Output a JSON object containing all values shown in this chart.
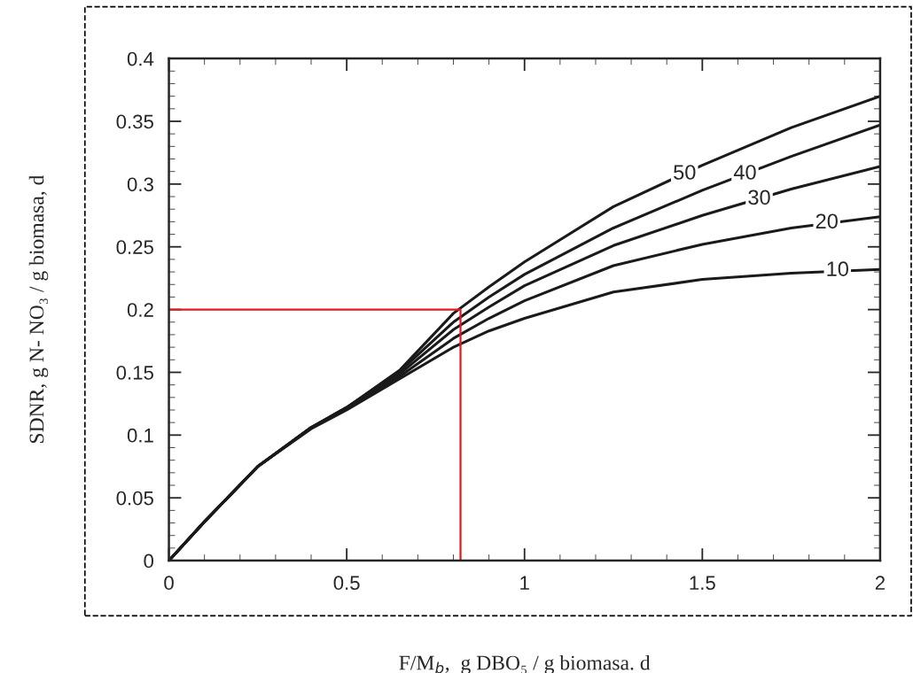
{
  "chart_data": {
    "type": "line",
    "xlabel": "F/M$_{b}$,  g DBO₅ / g biomasa. d",
    "ylabel": "SDNR, g N- NO₃ / g biomasa, d",
    "xlim": [
      0,
      2
    ],
    "ylim": [
      0,
      0.4
    ],
    "xticks": [
      0,
      0.5,
      1,
      1.5,
      2
    ],
    "yticks": [
      0,
      0.05,
      0.1,
      0.15,
      0.2,
      0.25,
      0.3,
      0.35,
      0.4
    ],
    "grid": false,
    "series": [
      {
        "color": "#1a1a1a",
        "x": [
          0,
          0.1,
          0.25,
          0.4,
          0.5,
          0.65,
          0.8,
          0.9,
          1.0,
          1.25,
          1.5,
          1.75,
          2.0
        ],
        "values": [
          0,
          0.031,
          0.075,
          0.106,
          0.122,
          0.152,
          0.197,
          0.218,
          0.238,
          0.282,
          0.315,
          0.345,
          0.37
        ]
      },
      {
        "color": "#1a1a1a",
        "x": [
          0,
          0.1,
          0.25,
          0.4,
          0.5,
          0.65,
          0.8,
          0.9,
          1.0,
          1.25,
          1.5,
          1.75,
          2.0
        ],
        "values": [
          0,
          0.031,
          0.075,
          0.106,
          0.122,
          0.151,
          0.19,
          0.21,
          0.228,
          0.265,
          0.295,
          0.322,
          0.347
        ]
      },
      {
        "color": "#1a1a1a",
        "x": [
          0,
          0.1,
          0.25,
          0.4,
          0.5,
          0.65,
          0.8,
          0.9,
          1.0,
          1.25,
          1.5,
          1.75,
          2.0
        ],
        "values": [
          0,
          0.031,
          0.075,
          0.106,
          0.122,
          0.149,
          0.184,
          0.202,
          0.219,
          0.251,
          0.275,
          0.296,
          0.314
        ]
      },
      {
        "color": "#1a1a1a",
        "x": [
          0,
          0.1,
          0.25,
          0.4,
          0.5,
          0.65,
          0.8,
          0.9,
          1.0,
          1.25,
          1.5,
          1.75,
          2.0
        ],
        "values": [
          0,
          0.031,
          0.075,
          0.106,
          0.121,
          0.147,
          0.177,
          0.193,
          0.207,
          0.235,
          0.252,
          0.265,
          0.274
        ]
      },
      {
        "color": "#1a1a1a",
        "x": [
          0,
          0.1,
          0.25,
          0.4,
          0.5,
          0.65,
          0.8,
          0.9,
          1.0,
          1.25,
          1.5,
          1.75,
          2.0
        ],
        "values": [
          0,
          0.031,
          0.075,
          0.105,
          0.12,
          0.145,
          0.17,
          0.183,
          0.193,
          0.214,
          0.224,
          0.229,
          0.232
        ]
      },
      {
        "color": "#e31a1c",
        "x": [
          0,
          0.82,
          0.82
        ],
        "values": [
          0.2,
          0.2,
          0
        ]
      }
    ],
    "annotations": [
      {
        "text": "50",
        "x": 1.45,
        "y": 0.308
      },
      {
        "text": "40",
        "x": 1.62,
        "y": 0.308
      },
      {
        "text": "30",
        "x": 1.66,
        "y": 0.288
      },
      {
        "text": "20",
        "x": 1.85,
        "y": 0.269
      },
      {
        "text": "10",
        "x": 1.88,
        "y": 0.231
      }
    ]
  }
}
